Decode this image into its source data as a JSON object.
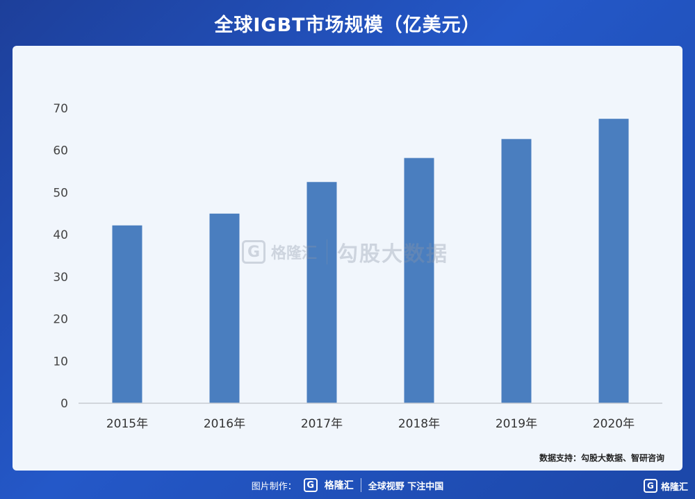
{
  "title": "全球IGBT市场规模（亿美元）",
  "chart_data": {
    "type": "bar",
    "categories": [
      "2015年",
      "2016年",
      "2017年",
      "2018年",
      "2019年",
      "2020年"
    ],
    "values": [
      42.2,
      45.0,
      52.5,
      58.2,
      62.7,
      67.5
    ],
    "ylim": [
      0,
      70
    ],
    "yticks": [
      "0",
      "10",
      "20",
      "30",
      "40",
      "50",
      "60",
      "70"
    ],
    "bar_color": "#4a7ebf",
    "grid": false,
    "legend": "none"
  },
  "source": "数据支持：勾股大数据、智研咨询",
  "watermark": {
    "logo": "G",
    "brand": "格隆汇",
    "text": "勾股大数据"
  },
  "footer": {
    "label": "图片制作：",
    "logo": "G",
    "brand": "格隆汇",
    "slogan": "全球视野 下注中国"
  },
  "corner": {
    "logo": "G",
    "brand": "格隆汇"
  }
}
